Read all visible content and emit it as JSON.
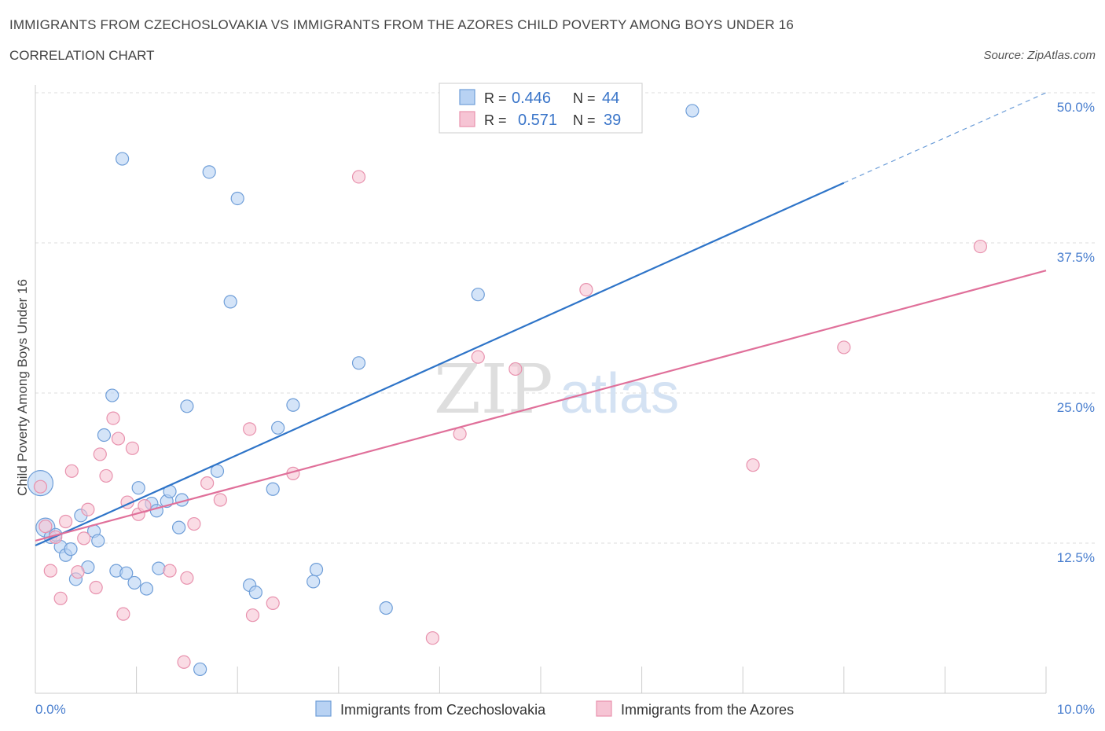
{
  "title": "IMMIGRANTS FROM CZECHOSLOVAKIA VS IMMIGRANTS FROM THE AZORES CHILD POVERTY AMONG BOYS UNDER 16",
  "subtitle": "CORRELATION CHART",
  "source": "Source: ZipAtlas.com",
  "watermark": {
    "zip": "ZIP",
    "atlas": "atlas"
  },
  "colors": {
    "blue_fill": "#b8d2f3",
    "blue_stroke": "#6f9ed8",
    "blue_line": "#2e74c8",
    "pink_fill": "#f6c4d4",
    "pink_stroke": "#e892ae",
    "pink_line": "#e0709a",
    "grid": "#dddddd",
    "tick_text": "#4a7fcf"
  },
  "legend": {
    "rows": [
      {
        "r_label": "R =",
        "r_value": "0.446",
        "n_label": "N =",
        "n_value": "44"
      },
      {
        "r_label": "R =",
        "r_value": "0.571",
        "n_label": "N =",
        "n_value": "39"
      }
    ]
  },
  "chart_data": {
    "type": "scatter",
    "title": "IMMIGRANTS FROM CZECHOSLOVAKIA VS IMMIGRANTS FROM THE AZORES CHILD POVERTY AMONG BOYS UNDER 16",
    "subtitle": "CORRELATION CHART",
    "xlabel": "",
    "ylabel": "Child Poverty Among Boys Under 16",
    "xlim": [
      0,
      10
    ],
    "ylim": [
      0,
      50
    ],
    "x_tick_labels": [
      "0.0%",
      "10.0%"
    ],
    "y_ticks": [
      12.5,
      25,
      37.5,
      50
    ],
    "y_tick_labels": [
      "12.5%",
      "25.0%",
      "37.5%",
      "50.0%"
    ],
    "grid": true,
    "legend_position": "bottom",
    "series": [
      {
        "name": "Immigrants from Czechoslovakia",
        "color": "#b8d2f3",
        "R": 0.446,
        "N": 44,
        "trend": {
          "x": [
            0,
            8
          ],
          "y": [
            12.3,
            42.5
          ],
          "dashed_to": [
            10,
            50
          ]
        },
        "points": [
          {
            "x": 0.05,
            "y": 17.5,
            "big": true
          },
          {
            "x": 0.1,
            "y": 13.8,
            "big": true
          },
          {
            "x": 0.15,
            "y": 13.0
          },
          {
            "x": 0.2,
            "y": 13.2
          },
          {
            "x": 0.25,
            "y": 12.2
          },
          {
            "x": 0.3,
            "y": 11.5
          },
          {
            "x": 0.35,
            "y": 12.0
          },
          {
            "x": 0.4,
            "y": 9.5
          },
          {
            "x": 0.45,
            "y": 14.8
          },
          {
            "x": 0.52,
            "y": 10.5
          },
          {
            "x": 0.58,
            "y": 13.5
          },
          {
            "x": 0.62,
            "y": 12.7
          },
          {
            "x": 0.68,
            "y": 21.5
          },
          {
            "x": 0.76,
            "y": 24.8
          },
          {
            "x": 0.8,
            "y": 10.2
          },
          {
            "x": 0.86,
            "y": 44.5
          },
          {
            "x": 0.9,
            "y": 10.0
          },
          {
            "x": 0.98,
            "y": 9.2
          },
          {
            "x": 1.02,
            "y": 17.1
          },
          {
            "x": 1.1,
            "y": 8.7
          },
          {
            "x": 1.15,
            "y": 15.8
          },
          {
            "x": 1.2,
            "y": 15.2
          },
          {
            "x": 1.22,
            "y": 10.4
          },
          {
            "x": 1.3,
            "y": 16.0
          },
          {
            "x": 1.33,
            "y": 16.8
          },
          {
            "x": 1.42,
            "y": 13.8
          },
          {
            "x": 1.45,
            "y": 16.1
          },
          {
            "x": 1.5,
            "y": 23.9
          },
          {
            "x": 1.63,
            "y": 2.0
          },
          {
            "x": 1.72,
            "y": 43.4
          },
          {
            "x": 1.8,
            "y": 18.5
          },
          {
            "x": 1.93,
            "y": 32.6
          },
          {
            "x": 2.0,
            "y": 41.2
          },
          {
            "x": 2.12,
            "y": 9.0
          },
          {
            "x": 2.18,
            "y": 8.4
          },
          {
            "x": 2.35,
            "y": 17.0
          },
          {
            "x": 2.4,
            "y": 22.1
          },
          {
            "x": 2.55,
            "y": 24.0
          },
          {
            "x": 2.75,
            "y": 9.3
          },
          {
            "x": 2.78,
            "y": 10.3
          },
          {
            "x": 3.2,
            "y": 27.5
          },
          {
            "x": 3.47,
            "y": 7.1
          },
          {
            "x": 4.38,
            "y": 33.2
          },
          {
            "x": 6.5,
            "y": 48.5
          }
        ]
      },
      {
        "name": "Immigrants from the Azores",
        "color": "#f6c4d4",
        "R": 0.571,
        "N": 39,
        "trend": {
          "x": [
            0,
            10
          ],
          "y": [
            12.7,
            35.2
          ]
        },
        "points": [
          {
            "x": 0.05,
            "y": 17.2
          },
          {
            "x": 0.1,
            "y": 13.9
          },
          {
            "x": 0.15,
            "y": 10.2
          },
          {
            "x": 0.2,
            "y": 13.0
          },
          {
            "x": 0.25,
            "y": 7.9
          },
          {
            "x": 0.3,
            "y": 14.3
          },
          {
            "x": 0.36,
            "y": 18.5
          },
          {
            "x": 0.42,
            "y": 10.1
          },
          {
            "x": 0.48,
            "y": 12.9
          },
          {
            "x": 0.52,
            "y": 15.3
          },
          {
            "x": 0.6,
            "y": 8.8
          },
          {
            "x": 0.64,
            "y": 19.9
          },
          {
            "x": 0.7,
            "y": 18.1
          },
          {
            "x": 0.77,
            "y": 22.9
          },
          {
            "x": 0.82,
            "y": 21.2
          },
          {
            "x": 0.87,
            "y": 6.6
          },
          {
            "x": 0.91,
            "y": 15.9
          },
          {
            "x": 0.96,
            "y": 20.4
          },
          {
            "x": 1.02,
            "y": 14.9
          },
          {
            "x": 1.08,
            "y": 15.6
          },
          {
            "x": 1.33,
            "y": 10.2
          },
          {
            "x": 1.47,
            "y": 2.6
          },
          {
            "x": 1.5,
            "y": 9.6
          },
          {
            "x": 1.57,
            "y": 14.1
          },
          {
            "x": 1.7,
            "y": 17.5
          },
          {
            "x": 1.83,
            "y": 16.1
          },
          {
            "x": 2.12,
            "y": 22.0
          },
          {
            "x": 2.15,
            "y": 6.5
          },
          {
            "x": 2.35,
            "y": 7.5
          },
          {
            "x": 2.55,
            "y": 18.3
          },
          {
            "x": 3.2,
            "y": 43.0
          },
          {
            "x": 3.93,
            "y": 4.6
          },
          {
            "x": 4.2,
            "y": 21.6
          },
          {
            "x": 4.38,
            "y": 28.0
          },
          {
            "x": 4.75,
            "y": 27.0
          },
          {
            "x": 5.45,
            "y": 33.6
          },
          {
            "x": 7.1,
            "y": 19.0
          },
          {
            "x": 8.0,
            "y": 28.8
          },
          {
            "x": 9.35,
            "y": 37.2
          }
        ]
      }
    ]
  }
}
